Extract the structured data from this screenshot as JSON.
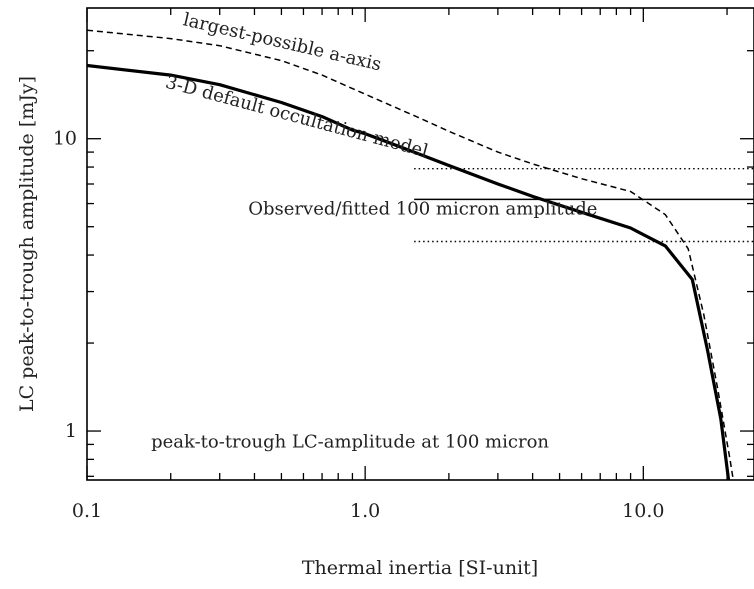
{
  "chart_data": {
    "type": "line",
    "xlabel": "Thermal inertia [SI-unit]",
    "ylabel": "LC peak-to-trough amplitude [mJy]",
    "x_scale": "log",
    "y_scale": "log",
    "xlim": [
      0.1,
      25
    ],
    "ylim": [
      0.68,
      28
    ],
    "x_ticks": [
      {
        "value": 0.1,
        "label": "0.1"
      },
      {
        "value": 1,
        "label": "1.0"
      },
      {
        "value": 10,
        "label": "10.0"
      }
    ],
    "y_ticks": [
      {
        "value": 1,
        "label": "1"
      },
      {
        "value": 10,
        "label": "10"
      }
    ],
    "grid": false,
    "series": [
      {
        "style": "solid-thick",
        "points": [
          [
            0.1,
            17.8
          ],
          [
            0.2,
            16.5
          ],
          [
            0.3,
            15.3
          ],
          [
            0.5,
            13.3
          ],
          [
            0.7,
            11.9
          ],
          [
            0.9,
            10.7
          ],
          [
            1.0,
            10.4
          ],
          [
            1.5,
            9.0
          ],
          [
            2.0,
            8.1
          ],
          [
            3.0,
            7.0
          ],
          [
            4.0,
            6.35
          ],
          [
            6.0,
            5.6
          ],
          [
            9.0,
            4.95
          ],
          [
            12.0,
            4.3
          ],
          [
            15.0,
            3.3
          ],
          [
            17.0,
            1.9
          ],
          [
            19.0,
            1.1
          ],
          [
            20.0,
            0.75
          ],
          [
            20.5,
            0.62
          ]
        ]
      },
      {
        "style": "dashed",
        "points": [
          [
            0.1,
            23.5
          ],
          [
            0.2,
            22.0
          ],
          [
            0.3,
            20.8
          ],
          [
            0.5,
            18.5
          ],
          [
            0.7,
            16.5
          ],
          [
            1.0,
            14.2
          ],
          [
            1.5,
            12.0
          ],
          [
            2.0,
            10.6
          ],
          [
            3.0,
            9.0
          ],
          [
            4.0,
            8.2
          ],
          [
            6.0,
            7.3
          ],
          [
            9.0,
            6.6
          ],
          [
            12.0,
            5.5
          ],
          [
            14.5,
            4.2
          ],
          [
            16.5,
            2.5
          ],
          [
            18.5,
            1.4
          ],
          [
            20.5,
            0.8
          ],
          [
            21.5,
            0.6
          ]
        ]
      }
    ],
    "reference_lines": [
      {
        "style": "solid",
        "y": 6.2,
        "x_from": 1.5
      },
      {
        "style": "dotted",
        "y": 7.9,
        "x_from": 1.5
      },
      {
        "style": "dotted",
        "y": 4.45,
        "x_from": 1.5
      }
    ],
    "annotations": [
      {
        "text": "largest-possible a-axis",
        "x": 0.22,
        "y": 24.5,
        "rotate": 13
      },
      {
        "text": "3-D default occultation model",
        "x": 0.19,
        "y": 15.0,
        "rotate": 15
      },
      {
        "text": "Observed/fitted 100 micron amplitude",
        "x": 0.38,
        "y": 5.5,
        "rotate": 0
      },
      {
        "text": "peak-to-trough LC-amplitude at 100 micron",
        "x": 0.17,
        "y": 0.88,
        "rotate": 0
      }
    ]
  }
}
